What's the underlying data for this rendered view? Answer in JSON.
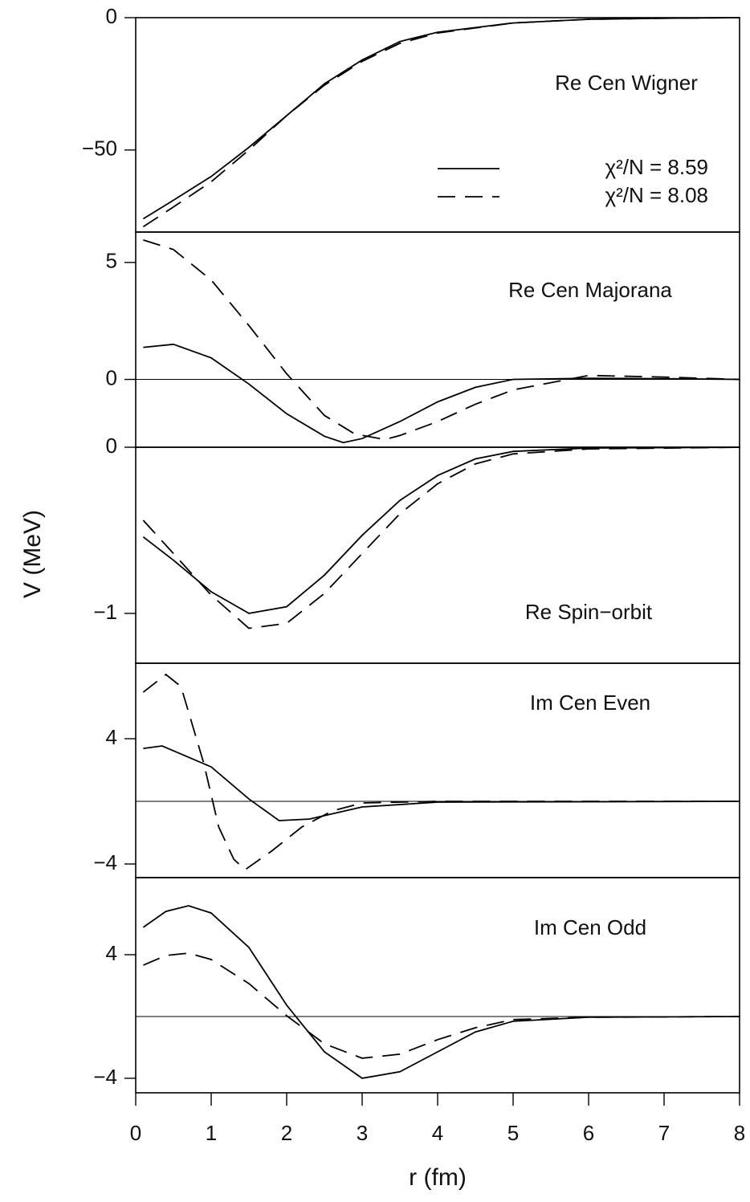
{
  "chart_data": [
    {
      "type": "line",
      "title": "Re Cen Wigner",
      "ylim": [
        -81,
        0
      ],
      "yticks": [
        0,
        {
          "value": -50,
          "label": "−50"
        }
      ],
      "zero_line": false,
      "series": [
        {
          "name": "χ²/N = 8.59",
          "style": "solid",
          "color": "#000000",
          "x": [
            0.1,
            0.5,
            1,
            1.5,
            2,
            2.5,
            3,
            3.5,
            4,
            5,
            6,
            7,
            8
          ],
          "values": [
            -76,
            -69,
            -60,
            -49,
            -37,
            -25,
            -16,
            -9,
            -5.5,
            -2,
            -0.6,
            -0.2,
            0
          ]
        },
        {
          "name": "χ²/N = 8.08",
          "style": "dashed",
          "color": "#000000",
          "x": [
            0.1,
            0.5,
            1,
            1.5,
            2,
            2.5,
            3,
            3.5,
            4,
            5,
            6,
            7,
            8
          ],
          "values": [
            -79,
            -71.5,
            -62,
            -50,
            -37,
            -25.5,
            -16.5,
            -9.7,
            -5.8,
            -2,
            -0.6,
            -0.2,
            0
          ]
        }
      ]
    },
    {
      "type": "line",
      "title": "Re Cen Majorana",
      "ylim": [
        -2.9,
        6.3
      ],
      "yticks": [
        0,
        5
      ],
      "zero_line": true,
      "series": [
        {
          "style": "solid",
          "color": "#000000",
          "x": [
            0.1,
            0.5,
            1,
            1.5,
            2,
            2.5,
            2.75,
            3,
            3.5,
            4,
            4.5,
            5,
            6,
            7,
            8
          ],
          "values": [
            1.37,
            1.5,
            0.92,
            -0.2,
            -1.47,
            -2.43,
            -2.7,
            -2.53,
            -1.8,
            -0.96,
            -0.34,
            0,
            0.05,
            0.03,
            0
          ]
        },
        {
          "style": "dashed",
          "color": "#000000",
          "x": [
            0.1,
            0.5,
            1,
            1.5,
            2,
            2.5,
            2.9,
            3.3,
            3.5,
            4,
            4.5,
            5,
            6,
            7,
            8
          ],
          "values": [
            5.96,
            5.55,
            4.25,
            2.3,
            0.24,
            -1.54,
            -2.33,
            -2.57,
            -2.4,
            -1.8,
            -1.06,
            -0.45,
            0.17,
            0.1,
            0
          ]
        }
      ]
    },
    {
      "type": "line",
      "title": "Re Spin−orbit",
      "ylim": [
        -1.3,
        0
      ],
      "yticks": [
        0,
        {
          "value": -1,
          "label": "−1"
        }
      ],
      "zero_line": false,
      "ylabel": "V (MeV)",
      "series": [
        {
          "style": "solid",
          "color": "#000000",
          "x": [
            0.1,
            0.5,
            1,
            1.5,
            2,
            2.5,
            3,
            3.5,
            4,
            4.5,
            5,
            6,
            8
          ],
          "values": [
            -0.54,
            -0.68,
            -0.87,
            -1.0,
            -0.96,
            -0.77,
            -0.53,
            -0.32,
            -0.17,
            -0.07,
            -0.025,
            -0.005,
            0
          ]
        },
        {
          "style": "dashed",
          "color": "#000000",
          "x": [
            0.1,
            0.5,
            1,
            1.5,
            2,
            2.5,
            3,
            3.5,
            4,
            4.5,
            5,
            6,
            8
          ],
          "values": [
            -0.44,
            -0.64,
            -0.89,
            -1.09,
            -1.06,
            -0.88,
            -0.64,
            -0.4,
            -0.22,
            -0.1,
            -0.04,
            -0.01,
            0
          ]
        }
      ]
    },
    {
      "type": "line",
      "title": "Im Cen Even",
      "ylim": [
        -4.87,
        8.82
      ],
      "yticks": [
        4,
        {
          "value": -4,
          "label": "−4"
        }
      ],
      "zero_line": true,
      "series": [
        {
          "style": "solid",
          "color": "#000000",
          "x": [
            0.1,
            0.35,
            1,
            1.5,
            1.9,
            2.3,
            3,
            4,
            8
          ],
          "values": [
            3.38,
            3.54,
            2.2,
            0.15,
            -1.23,
            -1.13,
            -0.36,
            -0.05,
            0
          ]
        },
        {
          "style": "dashed",
          "color": "#000000",
          "x": [
            0.1,
            0.4,
            0.6,
            0.9,
            1.1,
            1.3,
            1.45,
            1.8,
            2.2,
            2.6,
            3,
            4,
            8
          ],
          "values": [
            6.97,
            8.1,
            7.33,
            2.46,
            -1.64,
            -3.7,
            -4.36,
            -3.18,
            -1.64,
            -0.62,
            -0.1,
            0,
            0
          ]
        }
      ]
    },
    {
      "type": "line",
      "title": "Im Cen Odd",
      "ylim": [
        -4.94,
        8.99
      ],
      "yticks": [
        4,
        {
          "value": -4,
          "label": "−4"
        }
      ],
      "zero_line": true,
      "xlim": [
        0,
        8
      ],
      "xticks": [
        0,
        1,
        2,
        3,
        4,
        5,
        6,
        7,
        8
      ],
      "xlabel": "r (fm)",
      "series": [
        {
          "style": "solid",
          "color": "#000000",
          "x": [
            0.1,
            0.4,
            0.7,
            1,
            1.5,
            2,
            2.5,
            3,
            3.5,
            4,
            4.5,
            5,
            6,
            8
          ],
          "values": [
            5.77,
            6.8,
            7.17,
            6.7,
            4.47,
            0.73,
            -2.29,
            -4.0,
            -3.58,
            -2.29,
            -1.0,
            -0.31,
            -0.05,
            0
          ]
        },
        {
          "style": "dashed",
          "color": "#000000",
          "x": [
            0.1,
            0.4,
            0.7,
            1,
            1.5,
            2,
            2.5,
            3,
            3.5,
            4,
            4.5,
            5,
            6,
            8
          ],
          "values": [
            3.32,
            3.95,
            4.1,
            3.69,
            2.13,
            0.05,
            -1.77,
            -2.7,
            -2.44,
            -1.5,
            -0.73,
            -0.2,
            -0.05,
            0
          ]
        }
      ]
    }
  ]
}
